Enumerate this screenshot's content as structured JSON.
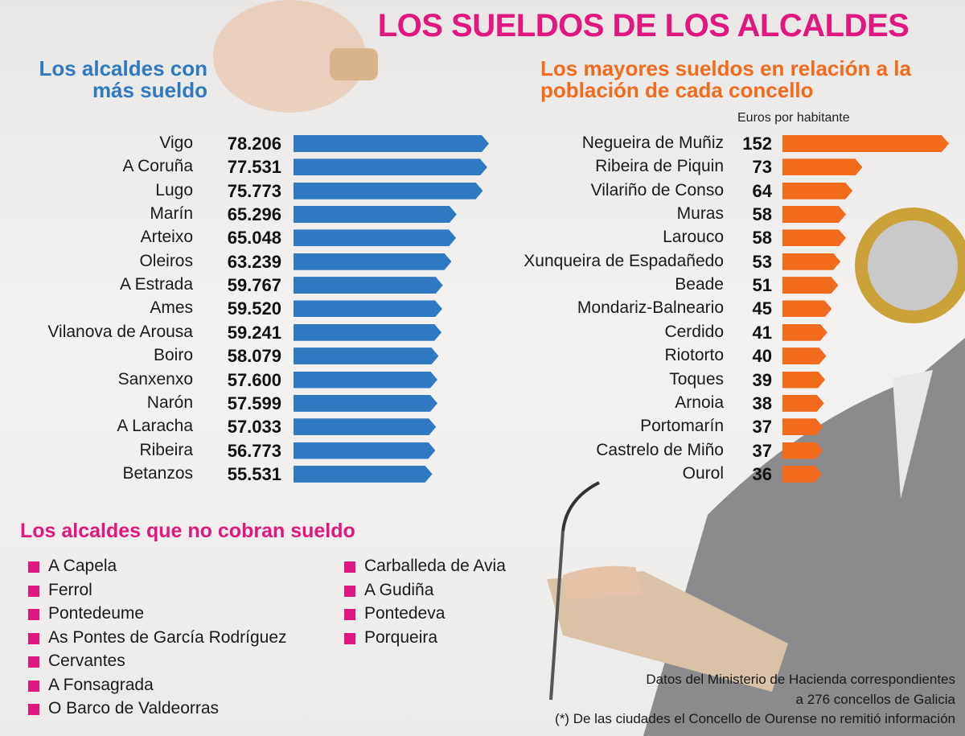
{
  "title": "LOS SUELDOS DE LOS ALCALDES",
  "chart_data": [
    {
      "type": "bar",
      "title": "Los alcaldes con más sueldo",
      "color": "#2f79c3",
      "categories": [
        "Vigo",
        "A Coruña",
        "Lugo",
        "Marín",
        "Arteixo",
        "Oleiros",
        "A Estrada",
        "Ames",
        "Vilanova de Arousa",
        "Boiro",
        "Sanxenxo",
        "Narón",
        "A Laracha",
        "Ribeira",
        "Betanzos"
      ],
      "values": [
        78206,
        77531,
        75773,
        65296,
        65048,
        63239,
        59767,
        59520,
        59241,
        58079,
        57600,
        57599,
        57033,
        56773,
        55531
      ],
      "value_labels": [
        "78.206",
        "77.531",
        "75.773",
        "65.296",
        "65.048",
        "63.239",
        "59.767",
        "59.520",
        "59.241",
        "58.079",
        "57.600",
        "57.599",
        "57.033",
        "56.773",
        "55.531"
      ]
    },
    {
      "type": "bar",
      "title": "Los mayores sueldos en relación a la población de cada concello",
      "unit": "Euros por habitante",
      "color": "#f26b1d",
      "categories": [
        "Negueira de Muñiz",
        "Ribeira de Piquin",
        "Vilariño de Conso",
        "Muras",
        "Larouco",
        "Xunqueira de Espadañedo",
        "Beade",
        "Mondariz-Balneario",
        "Cerdido",
        "Riotorto",
        "Toques",
        "Arnoia",
        "Portomarín",
        "Castrelo de Miño",
        "Ourol"
      ],
      "values": [
        152,
        73,
        64,
        58,
        58,
        53,
        51,
        45,
        41,
        40,
        39,
        38,
        37,
        37,
        36
      ]
    }
  ],
  "unpaid": {
    "title": "Los alcaldes que no cobran sueldo",
    "items": [
      "A Capela",
      "Ferrol",
      "Pontedeume",
      "As Pontes de García Rodríguez",
      "Cervantes",
      "A Fonsagrada",
      "O Barco de Valdeorras",
      "Carballeda de Avia",
      "A Gudiña",
      "Pontedeva",
      "Porqueira"
    ]
  },
  "notes": [
    "Datos del Ministerio de Hacienda correspondientes",
    "a 276 concellos de Galicia",
    "(*) De las ciudades el Concello de Ourense no remitió información"
  ]
}
